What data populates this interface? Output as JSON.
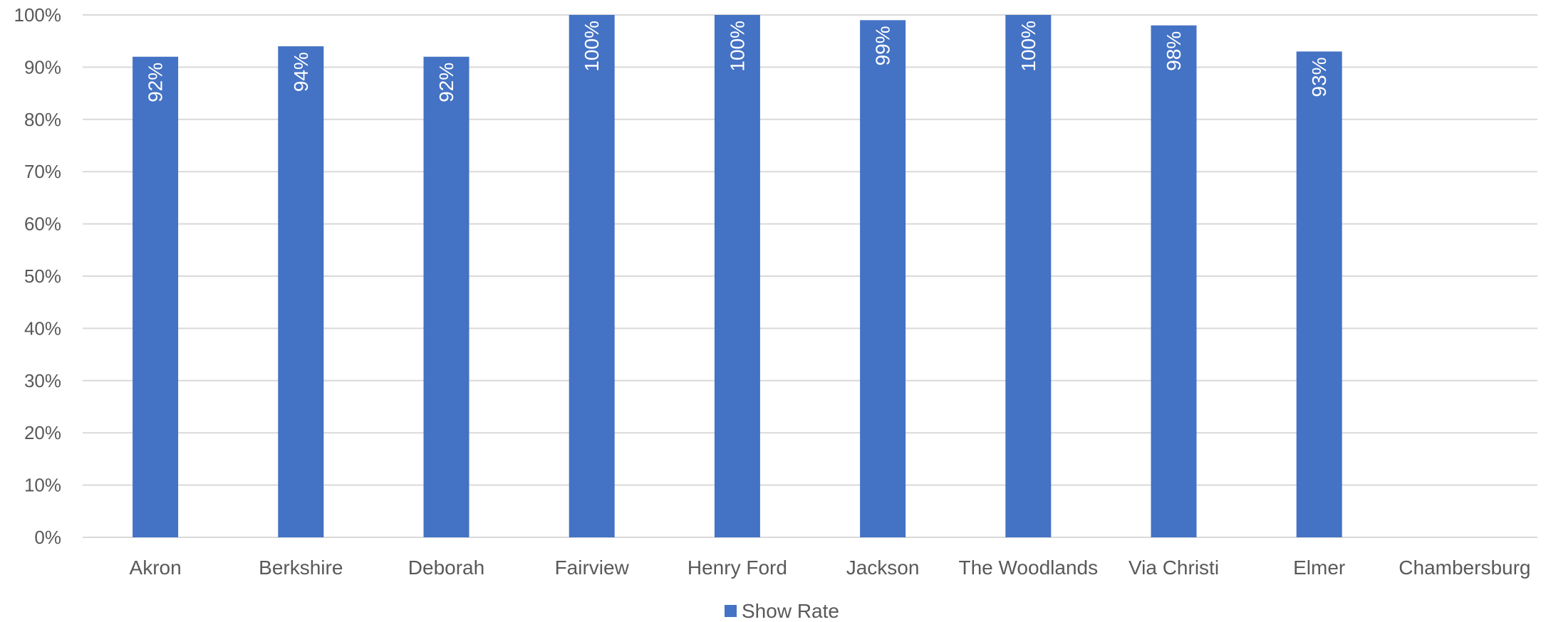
{
  "chart_data": {
    "type": "bar",
    "categories": [
      "Akron",
      "Berkshire",
      "Deborah",
      "Fairview",
      "Henry Ford",
      "Jackson",
      "The Woodlands",
      "Via Christi",
      "Elmer",
      "Chambersburg"
    ],
    "series": [
      {
        "name": "Show Rate",
        "values": [
          0.92,
          0.94,
          0.92,
          1.0,
          1.0,
          0.99,
          1.0,
          0.98,
          0.93,
          null
        ],
        "labels": [
          "92%",
          "94%",
          "92%",
          "100%",
          "100%",
          "99%",
          "100%",
          "98%",
          "93%",
          ""
        ]
      }
    ],
    "yticks": [
      "0%",
      "10%",
      "20%",
      "30%",
      "40%",
      "50%",
      "60%",
      "70%",
      "80%",
      "90%",
      "100%"
    ],
    "ylim": [
      0,
      1
    ],
    "grid": true,
    "legend_position": "bottom",
    "title": "",
    "xlabel": "",
    "ylabel": "",
    "colors": {
      "bar": "#4472C4",
      "grid": "#D9D9D9",
      "text": "#595959",
      "data_label": "#FFFFFF"
    }
  }
}
